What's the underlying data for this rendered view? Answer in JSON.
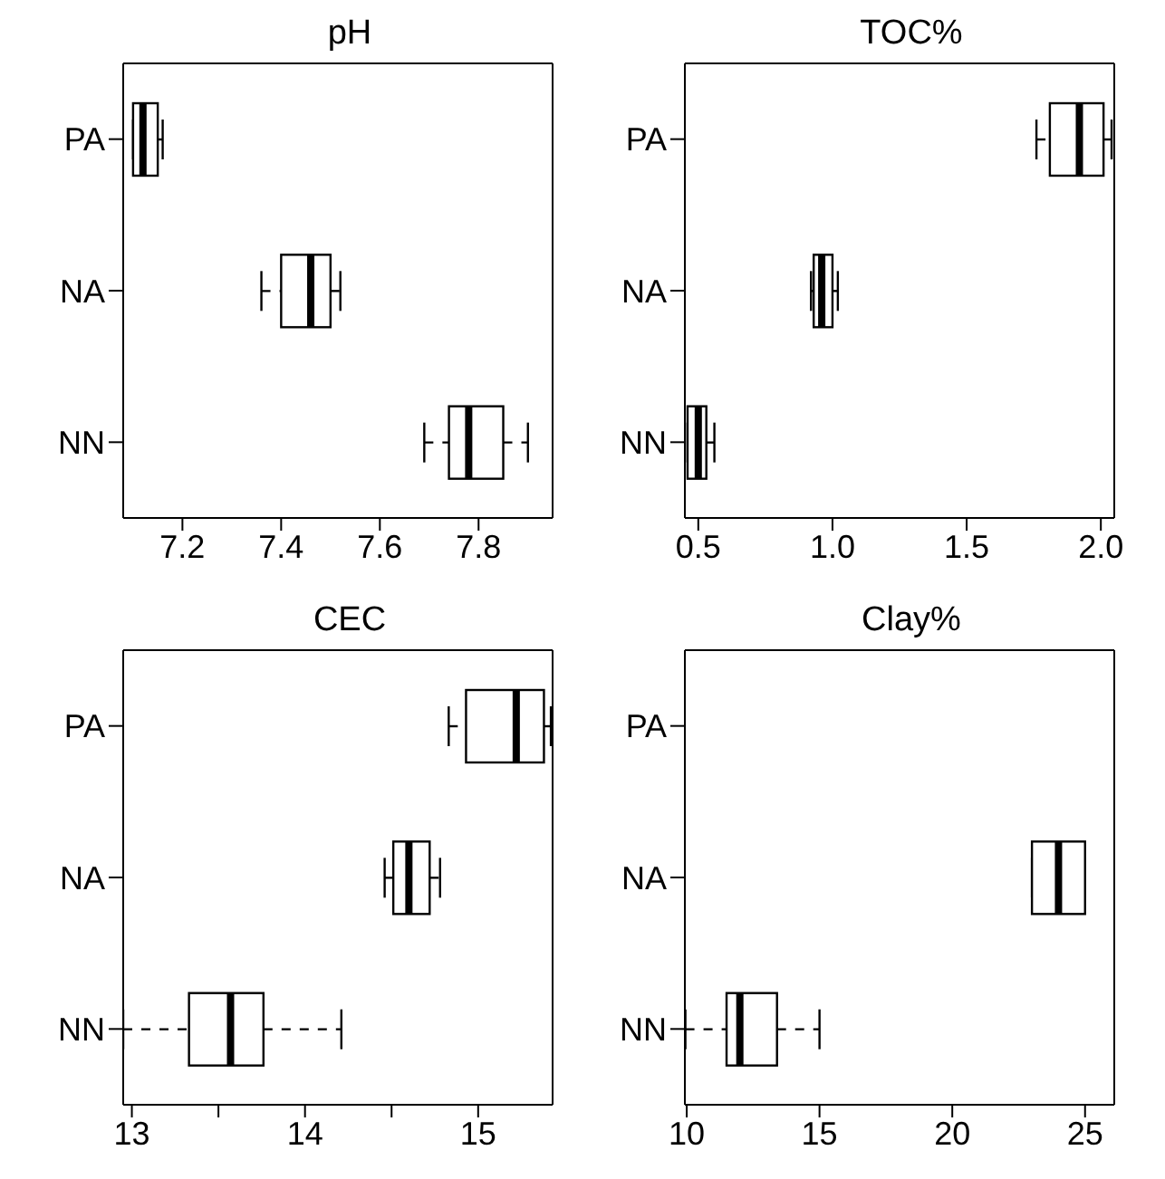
{
  "chart_data": [
    {
      "type": "box",
      "orientation": "horizontal",
      "title": "pH",
      "categories": [
        "PA",
        "NA",
        "NN"
      ],
      "xlim": [
        7.08,
        7.95
      ],
      "xticks": [
        7.2,
        7.4,
        7.6,
        7.8
      ],
      "boxes": [
        {
          "low": 7.1,
          "q1": 7.1,
          "median": 7.12,
          "q3": 7.15,
          "high": 7.16
        },
        {
          "low": 7.36,
          "q1": 7.4,
          "median": 7.46,
          "q3": 7.5,
          "high": 7.52
        },
        {
          "low": 7.69,
          "q1": 7.74,
          "median": 7.78,
          "q3": 7.85,
          "high": 7.9
        }
      ]
    },
    {
      "type": "box",
      "orientation": "horizontal",
      "title": "TOC%",
      "categories": [
        "PA",
        "NA",
        "NN"
      ],
      "xlim": [
        0.45,
        2.05
      ],
      "xticks": [
        0.5,
        {
          "value": 1,
          "label": "1.0"
        },
        1.5,
        {
          "value": 2,
          "label": "2.0"
        }
      ],
      "boxes": [
        {
          "low": 1.76,
          "q1": 1.81,
          "median": 1.92,
          "q3": 2.01,
          "high": 2.04
        },
        {
          "low": 0.92,
          "q1": 0.93,
          "median": 0.96,
          "q3": 1.0,
          "high": 1.02
        },
        {
          "low": 0.46,
          "q1": 0.46,
          "median": 0.5,
          "q3": 0.53,
          "high": 0.56
        }
      ]
    },
    {
      "type": "box",
      "orientation": "horizontal",
      "title": "CEC",
      "categories": [
        "PA",
        "NA",
        "NN"
      ],
      "xlim": [
        12.95,
        15.43
      ],
      "xticks": [
        13,
        {
          "value": 13.5,
          "label": null
        },
        14,
        {
          "value": 14.5,
          "label": null
        },
        15
      ],
      "boxes": [
        {
          "low": 14.83,
          "q1": 14.93,
          "median": 15.22,
          "q3": 15.38,
          "high": 15.42
        },
        {
          "low": 14.46,
          "q1": 14.51,
          "median": 14.6,
          "q3": 14.72,
          "high": 14.78
        },
        {
          "low": 12.95,
          "q1": 13.33,
          "median": 13.57,
          "q3": 13.76,
          "high": 14.21
        }
      ]
    },
    {
      "type": "box",
      "orientation": "horizontal",
      "title": "Clay%",
      "categories": [
        "PA",
        "NA",
        "NN"
      ],
      "xlim": [
        9.93,
        26.1
      ],
      "xticks": [
        10,
        15,
        20,
        25
      ],
      "boxes": [
        null,
        {
          "low": 23.0,
          "q1": 23.0,
          "median": 24.0,
          "q3": 25.0,
          "high": 25.0
        },
        {
          "low": 9.95,
          "q1": 11.5,
          "median": 12.0,
          "q3": 13.4,
          "high": 15.0
        }
      ]
    }
  ]
}
